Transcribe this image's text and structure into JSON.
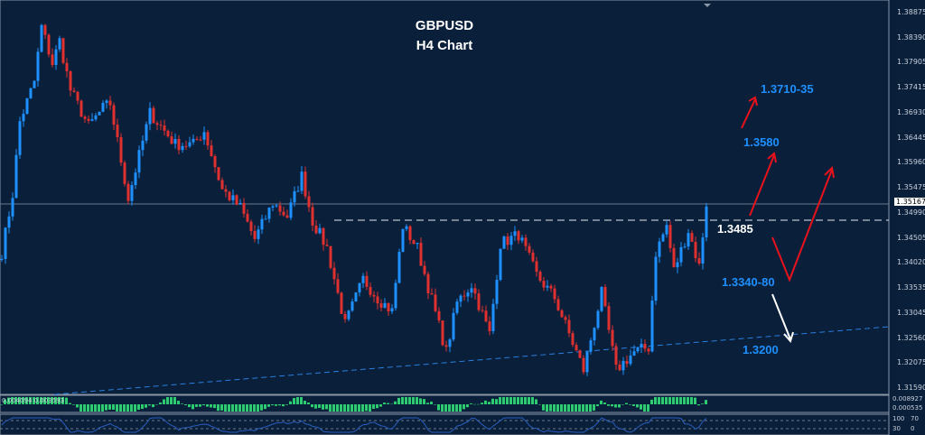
{
  "chart_data": {
    "type": "candlestick",
    "title": "GBPUSD",
    "subtitle": "H4  Chart",
    "ylim": [
      1.314,
      1.391
    ],
    "y_ticks": [
      "1.38875",
      "1.38390",
      "1.37905",
      "1.37415",
      "1.36930",
      "1.36445",
      "1.35960",
      "1.35475",
      "1.34990",
      "1.34505",
      "1.34020",
      "1.33535",
      "1.33045",
      "1.32560",
      "1.32075",
      "1.31590"
    ],
    "current_price": "1.35167",
    "price_path": [
      [
        0,
        1.3422
      ],
      [
        3,
        1.3535
      ],
      [
        5,
        1.3676
      ],
      [
        9,
        1.3754
      ],
      [
        11,
        1.386
      ],
      [
        14,
        1.3789
      ],
      [
        16,
        1.3833
      ],
      [
        19,
        1.3737
      ],
      [
        24,
        1.3667
      ],
      [
        28,
        1.3702
      ],
      [
        30,
        1.3711
      ],
      [
        35,
        1.3527
      ],
      [
        41,
        1.3693
      ],
      [
        48,
        1.3632
      ],
      [
        53,
        1.3632
      ],
      [
        56,
        1.3658
      ],
      [
        61,
        1.3544
      ],
      [
        66,
        1.3509
      ],
      [
        70,
        1.3448
      ],
      [
        75,
        1.3518
      ],
      [
        79,
        1.3492
      ],
      [
        83,
        1.3571
      ],
      [
        86,
        1.3483
      ],
      [
        90,
        1.3431
      ],
      [
        95,
        1.3282
      ],
      [
        100,
        1.337
      ],
      [
        104,
        1.3334
      ],
      [
        108,
        1.3308
      ],
      [
        111,
        1.3474
      ],
      [
        115,
        1.3431
      ],
      [
        123,
        1.3229
      ],
      [
        126,
        1.3325
      ],
      [
        130,
        1.336
      ],
      [
        135,
        1.3264
      ],
      [
        138,
        1.3439
      ],
      [
        143,
        1.3457
      ],
      [
        148,
        1.3378
      ],
      [
        153,
        1.3334
      ],
      [
        161,
        1.3194
      ],
      [
        166,
        1.3343
      ],
      [
        170,
        1.3194
      ],
      [
        175,
        1.3229
      ],
      [
        179,
        1.3238
      ],
      [
        181,
        1.3422
      ],
      [
        184,
        1.3474
      ],
      [
        186,
        1.3387
      ],
      [
        190,
        1.3465
      ],
      [
        193,
        1.3395
      ],
      [
        195,
        1.3518
      ]
    ],
    "colors": {
      "background": "#0a1f3a",
      "bull": "#1e90ff",
      "bear": "#e0302f",
      "annotation_blue": "#1e90ff",
      "arrow_red": "#e8121c"
    },
    "annotations": {
      "target_high": "1.3710-35",
      "target_mid": "1.3580",
      "resistance": "1.3485",
      "support_zone": "1.3340-80",
      "support_low": "1.3200"
    },
    "indicators": {
      "macd_label": "0.004094 0.003593",
      "macd_axis": [
        "0.008927",
        "0.000535"
      ],
      "rsi_axis": [
        "100",
        "70",
        "30",
        "0"
      ]
    }
  }
}
